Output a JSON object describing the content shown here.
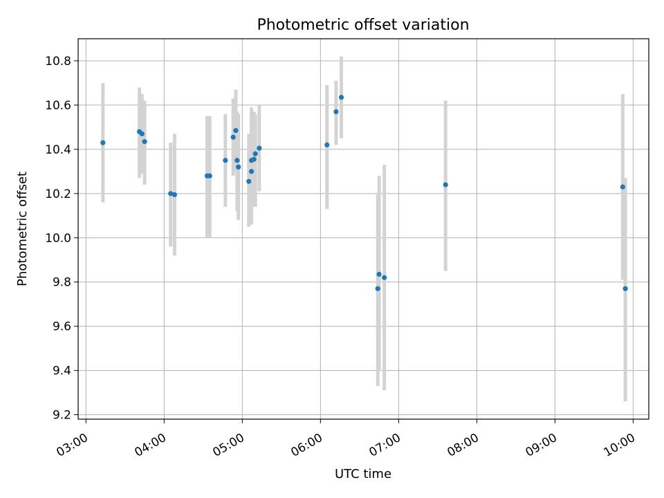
{
  "chart_data": {
    "type": "scatter",
    "title": "Photometric offset variation",
    "xlabel": "UTC time",
    "ylabel": "Photometric offset",
    "xlim": [
      "02:54",
      "10:12"
    ],
    "ylim": [
      9.18,
      10.9
    ],
    "x_ticks": [
      "03:00",
      "04:00",
      "05:00",
      "06:00",
      "07:00",
      "08:00",
      "09:00",
      "10:00"
    ],
    "y_ticks": [
      9.2,
      9.4,
      9.6,
      9.8,
      10.0,
      10.2,
      10.4,
      10.6,
      10.8
    ],
    "grid": true,
    "marker_color": "#1f77b4",
    "errorbar_color": "#d3d3d3",
    "points": [
      {
        "x": "03:13",
        "y": 10.43,
        "ylo": 10.16,
        "yhi": 10.7
      },
      {
        "x": "03:41",
        "y": 10.48,
        "ylo": 10.27,
        "yhi": 10.68
      },
      {
        "x": "03:43",
        "y": 10.47,
        "ylo": 10.29,
        "yhi": 10.65
      },
      {
        "x": "03:45",
        "y": 10.435,
        "ylo": 10.24,
        "yhi": 10.62
      },
      {
        "x": "04:05",
        "y": 10.2,
        "ylo": 9.96,
        "yhi": 10.43
      },
      {
        "x": "04:08",
        "y": 10.195,
        "ylo": 9.92,
        "yhi": 10.47
      },
      {
        "x": "04:33",
        "y": 10.28,
        "ylo": 10.0,
        "yhi": 10.55
      },
      {
        "x": "04:35",
        "y": 10.28,
        "ylo": 10.0,
        "yhi": 10.55
      },
      {
        "x": "04:47",
        "y": 10.35,
        "ylo": 10.14,
        "yhi": 10.56
      },
      {
        "x": "04:53",
        "y": 10.455,
        "ylo": 10.28,
        "yhi": 10.63
      },
      {
        "x": "04:55",
        "y": 10.485,
        "ylo": 10.3,
        "yhi": 10.67
      },
      {
        "x": "04:56",
        "y": 10.35,
        "ylo": 10.12,
        "yhi": 10.57
      },
      {
        "x": "04:57",
        "y": 10.32,
        "ylo": 10.08,
        "yhi": 10.56
      },
      {
        "x": "05:05",
        "y": 10.255,
        "ylo": 10.05,
        "yhi": 10.47
      },
      {
        "x": "05:07",
        "y": 10.35,
        "ylo": 10.06,
        "yhi": 10.59
      },
      {
        "x": "05:07",
        "y": 10.3,
        "ylo": 10.06,
        "yhi": 10.57
      },
      {
        "x": "05:09",
        "y": 10.355,
        "ylo": 10.14,
        "yhi": 10.57
      },
      {
        "x": "05:10",
        "y": 10.38,
        "ylo": 10.14,
        "yhi": 10.56
      },
      {
        "x": "05:13",
        "y": 10.405,
        "ylo": 10.21,
        "yhi": 10.6
      },
      {
        "x": "06:05",
        "y": 10.42,
        "ylo": 10.13,
        "yhi": 10.69
      },
      {
        "x": "06:12",
        "y": 10.57,
        "ylo": 10.42,
        "yhi": 10.71
      },
      {
        "x": "06:16",
        "y": 10.635,
        "ylo": 10.45,
        "yhi": 10.82
      },
      {
        "x": "06:44",
        "y": 9.77,
        "ylo": 9.33,
        "yhi": 10.2
      },
      {
        "x": "06:45",
        "y": 9.835,
        "ylo": 9.4,
        "yhi": 10.28
      },
      {
        "x": "06:49",
        "y": 9.82,
        "ylo": 9.31,
        "yhi": 10.33
      },
      {
        "x": "07:36",
        "y": 10.24,
        "ylo": 9.85,
        "yhi": 10.62
      },
      {
        "x": "09:52",
        "y": 10.23,
        "ylo": 9.81,
        "yhi": 10.65
      },
      {
        "x": "09:54",
        "y": 9.77,
        "ylo": 9.26,
        "yhi": 10.27
      }
    ]
  }
}
